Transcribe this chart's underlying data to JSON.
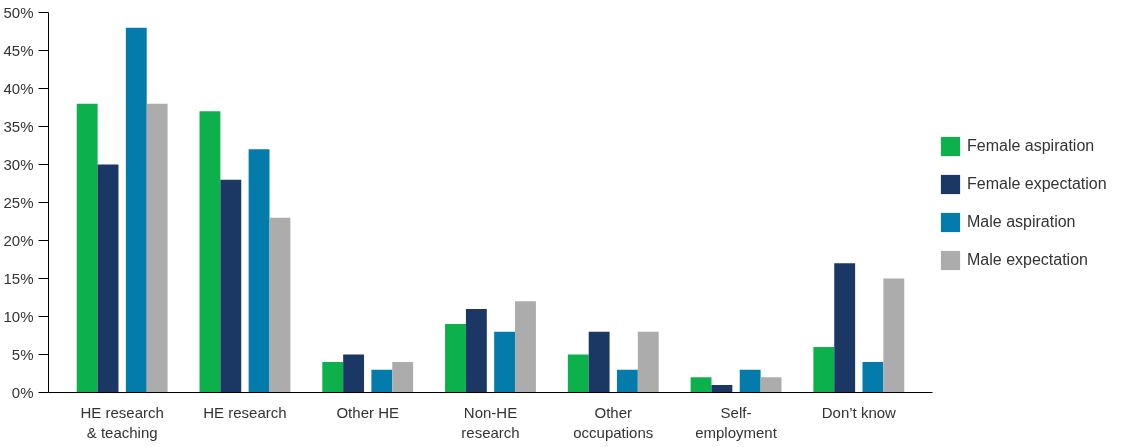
{
  "chart_data": {
    "type": "bar",
    "categories": [
      "HE research\n& teaching",
      "HE research",
      "Other HE",
      "Non-HE\nresearch",
      "Other\noccupations",
      "Self-\nemployment",
      "Don’t know"
    ],
    "series": [
      {
        "name": "Female aspiration",
        "color": "#0db14b",
        "values": [
          38,
          37,
          4,
          9,
          5,
          2,
          6
        ]
      },
      {
        "name": "Female expectation",
        "color": "#1b3764",
        "values": [
          30,
          28,
          5,
          11,
          8,
          1,
          17
        ]
      },
      {
        "name": "Male aspiration",
        "color": "#037bab",
        "values": [
          48,
          32,
          3,
          8,
          3,
          3,
          4
        ]
      },
      {
        "name": "Male expectation",
        "color": "#adacad",
        "values": [
          38,
          23,
          4,
          12,
          8,
          2,
          15
        ]
      }
    ],
    "ylim": [
      0,
      50
    ],
    "yticks": [
      {
        "value": 0,
        "label": "0%"
      },
      {
        "value": 5,
        "label": "5%"
      },
      {
        "value": 10,
        "label": "10%"
      },
      {
        "value": 15,
        "label": "15%"
      },
      {
        "value": 20,
        "label": "20%"
      },
      {
        "value": 25,
        "label": "25%"
      },
      {
        "value": 30,
        "label": "30%"
      },
      {
        "value": 35,
        "label": "35%"
      },
      {
        "value": 40,
        "label": "40%"
      },
      {
        "value": 45,
        "label": "45%"
      },
      {
        "value": 50,
        "label": "50%"
      }
    ],
    "grid": false,
    "legend": "right"
  }
}
